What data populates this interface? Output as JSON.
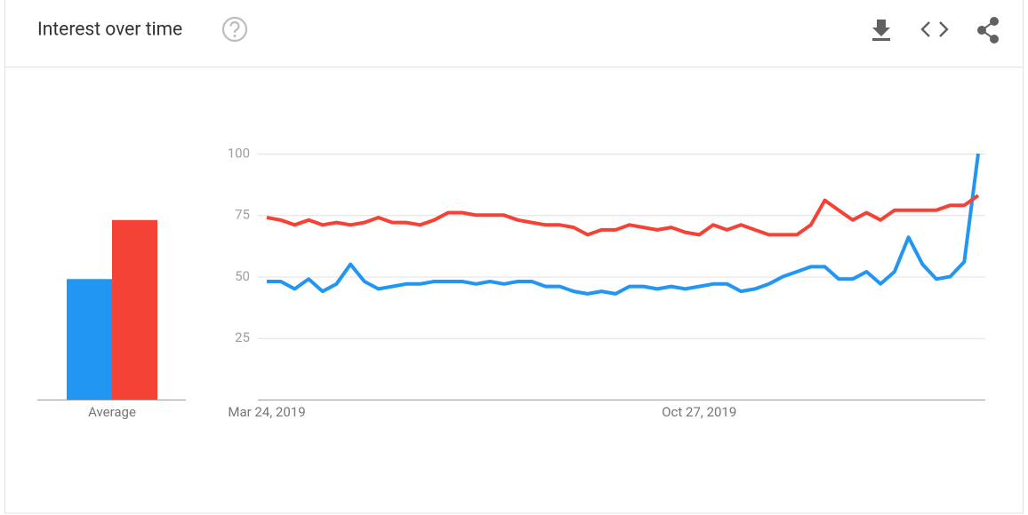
{
  "header": {
    "title": "Interest over time"
  },
  "chart_data": [
    {
      "type": "bar",
      "categories": [
        "Average"
      ],
      "ylim": [
        0,
        100
      ],
      "series": [
        {
          "color": "#2196f3",
          "values": [
            49
          ]
        },
        {
          "color": "#f44336",
          "values": [
            73
          ]
        }
      ]
    },
    {
      "type": "line",
      "categories": [
        "Mar 24, 2019",
        null,
        null,
        null,
        null,
        null,
        null,
        null,
        null,
        null,
        null,
        null,
        null,
        null,
        null,
        null,
        null,
        null,
        null,
        null,
        null,
        null,
        null,
        null,
        null,
        null,
        null,
        null,
        null,
        null,
        null,
        "Oct 27, 2019",
        null,
        null,
        null,
        null,
        null,
        null,
        null,
        null,
        null,
        null,
        null,
        null,
        null,
        null,
        null,
        null,
        null,
        null,
        null,
        null
      ],
      "ylim": [
        0,
        100
      ],
      "yticks": [
        25,
        50,
        75,
        100
      ],
      "grid": true,
      "series": [
        {
          "color": "#2196f3",
          "values": [
            48,
            48,
            45,
            49,
            44,
            47,
            55,
            48,
            45,
            46,
            47,
            47,
            48,
            48,
            48,
            47,
            48,
            47,
            48,
            48,
            46,
            46,
            44,
            43,
            44,
            43,
            46,
            46,
            45,
            46,
            45,
            46,
            47,
            47,
            44,
            45,
            47,
            50,
            52,
            54,
            54,
            49,
            49,
            52,
            47,
            52,
            66,
            55,
            49,
            50,
            56,
            100
          ]
        },
        {
          "color": "#f44336",
          "values": [
            74,
            73,
            71,
            73,
            71,
            72,
            71,
            72,
            74,
            72,
            72,
            71,
            73,
            76,
            76,
            75,
            75,
            75,
            73,
            72,
            71,
            71,
            70,
            67,
            69,
            69,
            71,
            70,
            69,
            70,
            68,
            67,
            71,
            69,
            71,
            69,
            67,
            67,
            67,
            71,
            81,
            77,
            73,
            76,
            73,
            77,
            77,
            77,
            77,
            79,
            79,
            83
          ]
        }
      ]
    }
  ]
}
